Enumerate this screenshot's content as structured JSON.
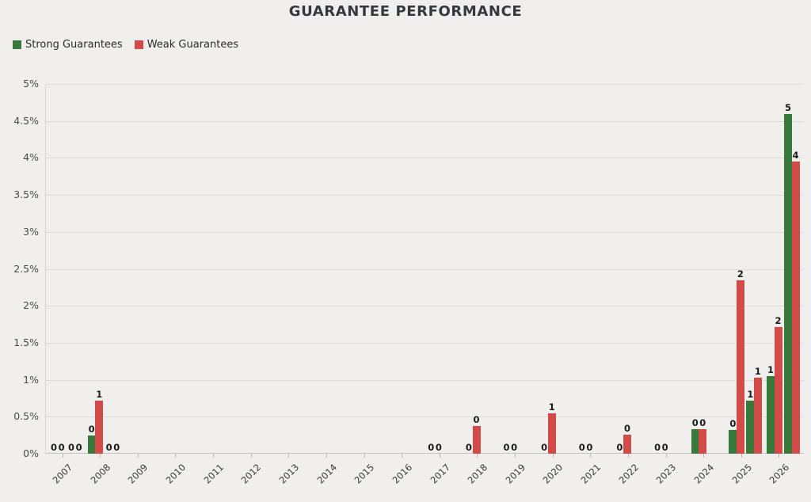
{
  "title": "GUARANTEE PERFORMANCE",
  "legend": {
    "items": [
      {
        "label": "Strong Guarantees",
        "color": "#38793c"
      },
      {
        "label": "Weak Guarantees",
        "color": "#d24b48"
      }
    ]
  },
  "chart_data": {
    "type": "bar",
    "title": "GUARANTEE PERFORMANCE",
    "xlabel": "",
    "ylabel": "",
    "ylim": [
      0,
      5
    ],
    "grid": true,
    "legend_position": "top-left",
    "y_tick_labels": [
      "0%",
      "0.5%",
      "1%",
      "1.5%",
      "2%",
      "2.5%",
      "3%",
      "3.5%",
      "4%",
      "4.5%",
      "5%"
    ],
    "x_tick_labels": [
      "2007",
      "2008",
      "2009",
      "2010",
      "2011",
      "2012",
      "2013",
      "2014",
      "2015",
      "2016",
      "2017",
      "2018",
      "2019",
      "2020",
      "2021",
      "2022",
      "2023",
      "2024",
      "2025",
      "2026"
    ],
    "series": [
      {
        "name": "Strong Guarantees",
        "color": "#38793c",
        "slug": "strong"
      },
      {
        "name": "Weak Guarantees",
        "color": "#d24b48",
        "slug": "weak"
      }
    ],
    "years": [
      {
        "label": "2007",
        "groups": [
          [
            {
              "value": 0,
              "label": "0"
            },
            {
              "value": 0,
              "label": "0"
            }
          ],
          [
            {
              "value": 0,
              "label": "0"
            },
            {
              "value": 0,
              "label": "0"
            }
          ]
        ]
      },
      {
        "label": "2008",
        "groups": [
          [
            {
              "value": 0.25,
              "label": "0"
            },
            {
              "value": 0.72,
              "label": "1"
            }
          ],
          [
            {
              "value": 0,
              "label": "0"
            },
            {
              "value": 0,
              "label": "0"
            }
          ]
        ]
      },
      {
        "label": "2009",
        "groups": [
          null,
          null
        ]
      },
      {
        "label": "2010",
        "groups": [
          null,
          null
        ]
      },
      {
        "label": "2011",
        "groups": [
          null,
          null
        ]
      },
      {
        "label": "2012",
        "groups": [
          null,
          null
        ]
      },
      {
        "label": "2013",
        "groups": [
          null,
          null
        ]
      },
      {
        "label": "2014",
        "groups": [
          null,
          null
        ]
      },
      {
        "label": "2015",
        "groups": [
          null,
          null
        ]
      },
      {
        "label": "2016",
        "groups": [
          null,
          null
        ]
      },
      {
        "label": "2017",
        "groups": [
          [
            {
              "value": 0,
              "label": "0"
            },
            {
              "value": 0,
              "label": "0"
            }
          ],
          null
        ]
      },
      {
        "label": "2018",
        "groups": [
          [
            {
              "value": 0,
              "label": "0"
            },
            {
              "value": 0.38,
              "label": "0"
            }
          ],
          null
        ]
      },
      {
        "label": "2019",
        "groups": [
          [
            {
              "value": 0,
              "label": "0"
            },
            {
              "value": 0,
              "label": "0"
            }
          ],
          null
        ]
      },
      {
        "label": "2020",
        "groups": [
          [
            {
              "value": 0,
              "label": "0"
            },
            {
              "value": 0.55,
              "label": "1"
            }
          ],
          null
        ]
      },
      {
        "label": "2021",
        "groups": [
          [
            {
              "value": 0,
              "label": "0"
            },
            {
              "value": 0,
              "label": "0"
            }
          ],
          null
        ]
      },
      {
        "label": "2022",
        "groups": [
          [
            {
              "value": 0,
              "label": "0"
            },
            {
              "value": 0.26,
              "label": "0"
            }
          ],
          null
        ]
      },
      {
        "label": "2023",
        "groups": [
          [
            {
              "value": 0,
              "label": "0"
            },
            {
              "value": 0,
              "label": "0"
            }
          ],
          null
        ]
      },
      {
        "label": "2024",
        "groups": [
          [
            {
              "value": 0.33,
              "label": "0"
            },
            {
              "value": 0.33,
              "label": "0"
            }
          ],
          null
        ]
      },
      {
        "label": "2025",
        "groups": [
          [
            {
              "value": 0.32,
              "label": "0"
            },
            {
              "value": 2.35,
              "label": "2"
            }
          ],
          [
            {
              "value": 0.72,
              "label": "1"
            },
            {
              "value": 1.03,
              "label": "1"
            }
          ]
        ]
      },
      {
        "label": "2026",
        "groups": [
          [
            {
              "value": 1.05,
              "label": "1"
            },
            {
              "value": 1.71,
              "label": "2"
            }
          ],
          [
            {
              "value": 4.59,
              "label": "5"
            },
            {
              "value": 3.95,
              "label": "4"
            }
          ]
        ]
      }
    ]
  }
}
